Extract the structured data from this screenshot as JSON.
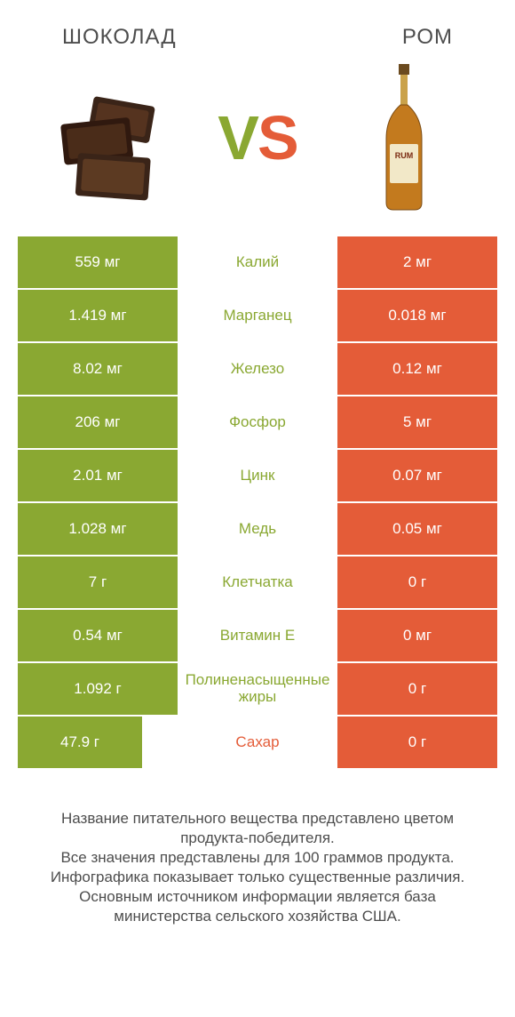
{
  "products": {
    "left": {
      "name": "ШОКОЛАД"
    },
    "right": {
      "name": "РОМ"
    }
  },
  "vs": {
    "left_letter": "V",
    "right_letter": "S"
  },
  "colors": {
    "green": "#8aa832",
    "orange": "#e45c38",
    "row_gap_bg": "#ffffff",
    "text_white": "#ffffff"
  },
  "table": {
    "left_full_width": 180,
    "left_reduced_width": 140,
    "rows": [
      {
        "left": "559 мг",
        "label": "Калий",
        "right": "2 мг",
        "winner": "left"
      },
      {
        "left": "1.419 мг",
        "label": "Марганец",
        "right": "0.018 мг",
        "winner": "left"
      },
      {
        "left": "8.02 мг",
        "label": "Железо",
        "right": "0.12 мг",
        "winner": "left"
      },
      {
        "left": "206 мг",
        "label": "Фосфор",
        "right": "5 мг",
        "winner": "left"
      },
      {
        "left": "2.01 мг",
        "label": "Цинк",
        "right": "0.07 мг",
        "winner": "left"
      },
      {
        "left": "1.028 мг",
        "label": "Медь",
        "right": "0.05 мг",
        "winner": "left"
      },
      {
        "left": "7 г",
        "label": "Клетчатка",
        "right": "0 г",
        "winner": "left"
      },
      {
        "left": "0.54 мг",
        "label": "Витамин E",
        "right": "0 мг",
        "winner": "left"
      },
      {
        "left": "1.092 г",
        "label": "Полиненасыщенные жиры",
        "right": "0 г",
        "winner": "left"
      },
      {
        "left": "47.9 г",
        "label": "Сахар",
        "right": "0 г",
        "winner": "right"
      }
    ]
  },
  "footer": "Название питательного вещества представлено цветом продукта-победителя.\nВсе значения представлены для 100 граммов продукта.\nИнфографика показывает только существенные различия.\nОсновным источником информации является база министерства сельского хозяйства США."
}
